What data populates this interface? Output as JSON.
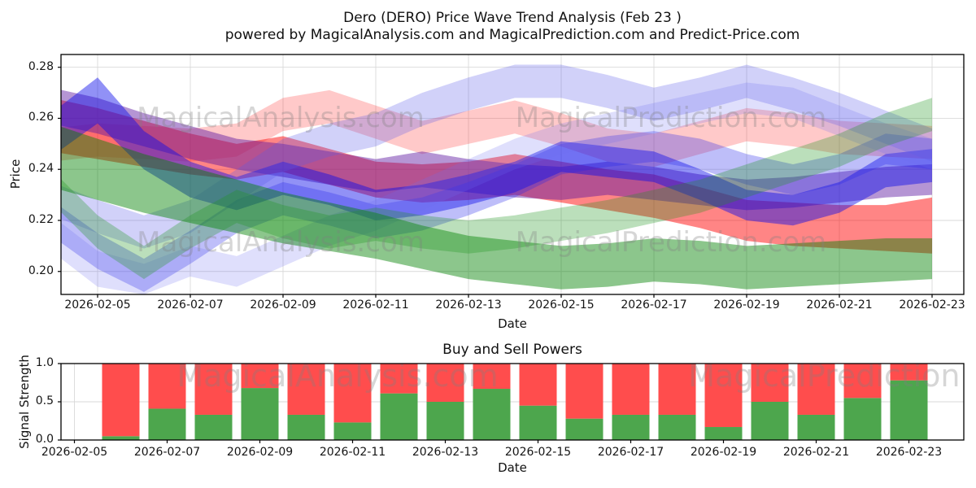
{
  "figure_title_line1": "Dero (DERO) Price Wave Trend Analysis (Feb 23 )",
  "figure_title_line2": "powered by MagicalAnalysis.com and MagicalPrediction.com and Predict-Price.com",
  "watermarks": {
    "analysis": "MagicalAnalysis.com",
    "prediction": "MagicalPrediction.com",
    "color": "rgba(128,128,128,0.32)"
  },
  "style": {
    "grid_color": "#d9d9d9",
    "spine_color": "#000000",
    "background": "#ffffff"
  },
  "chart_data": [
    {
      "type": "area",
      "title": "Dero (DERO) Price Wave Trend Analysis (Feb 23 )",
      "subtitle": "powered by MagicalAnalysis.com and MagicalPrediction.com and Predict-Price.com",
      "xlabel": "Date",
      "ylabel": "Price",
      "ylim": [
        0.191,
        0.285
      ],
      "yticks": [
        0.2,
        0.22,
        0.24,
        0.26,
        0.28
      ],
      "ytick_labels": [
        "0.20",
        "0.22",
        "0.24",
        "0.26",
        "0.28"
      ],
      "xtick_labels": [
        "2026-02-05",
        "2026-02-07",
        "2026-02-09",
        "2026-02-11",
        "2026-02-13",
        "2026-02-15",
        "2026-02-17",
        "2026-02-19",
        "2026-02-21",
        "2026-02-23"
      ],
      "grid": true,
      "legend": "none",
      "x": [
        "2026-02-04",
        "2026-02-05",
        "2026-02-06",
        "2026-02-07",
        "2026-02-08",
        "2026-02-09",
        "2026-02-10",
        "2026-02-11",
        "2026-02-12",
        "2026-02-13",
        "2026-02-14",
        "2026-02-15",
        "2026-02-16",
        "2026-02-17",
        "2026-02-18",
        "2026-02-19",
        "2026-02-20",
        "2026-02-21",
        "2026-02-22",
        "2026-02-23"
      ],
      "series": [
        {
          "name": "red-wave-main",
          "color": "rgba(255,0,0,0.48)",
          "upper": [
            0.268,
            0.264,
            0.259,
            0.254,
            0.25,
            0.253,
            0.248,
            0.243,
            0.242,
            0.243,
            0.246,
            0.243,
            0.24,
            0.238,
            0.233,
            0.228,
            0.227,
            0.226,
            0.226,
            0.229
          ],
          "lower": [
            0.247,
            0.244,
            0.241,
            0.238,
            0.236,
            0.239,
            0.234,
            0.229,
            0.227,
            0.228,
            0.23,
            0.227,
            0.224,
            0.221,
            0.217,
            0.212,
            0.21,
            0.209,
            0.208,
            0.207
          ]
        },
        {
          "name": "red-wave-light",
          "color": "rgba(255,40,40,0.25)",
          "upper": [
            0.256,
            0.258,
            0.257,
            0.256,
            0.258,
            0.268,
            0.271,
            0.265,
            0.259,
            0.263,
            0.267,
            0.262,
            0.256,
            0.254,
            0.259,
            0.264,
            0.262,
            0.259,
            0.258,
            0.257
          ],
          "lower": [
            0.243,
            0.245,
            0.244,
            0.243,
            0.245,
            0.255,
            0.258,
            0.252,
            0.246,
            0.25,
            0.254,
            0.249,
            0.243,
            0.241,
            0.246,
            0.251,
            0.249,
            0.246,
            0.245,
            0.244
          ]
        },
        {
          "name": "purple-wave",
          "color": "rgba(90,20,160,0.45)",
          "upper": [
            0.272,
            0.268,
            0.262,
            0.257,
            0.252,
            0.25,
            0.247,
            0.244,
            0.247,
            0.244,
            0.242,
            0.241,
            0.243,
            0.241,
            0.238,
            0.236,
            0.237,
            0.239,
            0.241,
            0.242
          ],
          "lower": [
            0.258,
            0.254,
            0.249,
            0.244,
            0.24,
            0.237,
            0.234,
            0.231,
            0.233,
            0.231,
            0.229,
            0.228,
            0.23,
            0.228,
            0.226,
            0.224,
            0.225,
            0.227,
            0.229,
            0.23
          ]
        },
        {
          "name": "blue-wave-main",
          "color": "rgba(10,10,235,0.45)",
          "upper": [
            0.262,
            0.276,
            0.255,
            0.243,
            0.237,
            0.243,
            0.238,
            0.232,
            0.234,
            0.238,
            0.243,
            0.251,
            0.249,
            0.247,
            0.24,
            0.232,
            0.23,
            0.235,
            0.246,
            0.248
          ],
          "lower": [
            0.245,
            0.258,
            0.24,
            0.229,
            0.224,
            0.23,
            0.226,
            0.22,
            0.222,
            0.226,
            0.231,
            0.239,
            0.237,
            0.235,
            0.228,
            0.22,
            0.218,
            0.223,
            0.233,
            0.235
          ]
        },
        {
          "name": "blue-wave-mid",
          "color": "rgba(40,40,235,0.30)",
          "upper": [
            0.228,
            0.215,
            0.205,
            0.216,
            0.228,
            0.235,
            0.231,
            0.226,
            0.229,
            0.235,
            0.242,
            0.25,
            0.253,
            0.255,
            0.252,
            0.246,
            0.242,
            0.246,
            0.254,
            0.252
          ],
          "lower": [
            0.214,
            0.201,
            0.192,
            0.203,
            0.215,
            0.222,
            0.218,
            0.213,
            0.216,
            0.222,
            0.229,
            0.238,
            0.241,
            0.243,
            0.24,
            0.234,
            0.23,
            0.234,
            0.242,
            0.24
          ]
        },
        {
          "name": "periwinkle-arc",
          "color": "rgba(90,90,235,0.28)",
          "upper": [
            0.235,
            0.228,
            0.222,
            0.228,
            0.24,
            0.252,
            0.258,
            0.262,
            0.27,
            0.276,
            0.281,
            0.281,
            0.277,
            0.272,
            0.276,
            0.281,
            0.276,
            0.27,
            0.263,
            0.256
          ],
          "lower": [
            0.222,
            0.215,
            0.209,
            0.215,
            0.227,
            0.239,
            0.245,
            0.249,
            0.257,
            0.263,
            0.268,
            0.268,
            0.264,
            0.259,
            0.263,
            0.268,
            0.263,
            0.257,
            0.25,
            0.243
          ]
        },
        {
          "name": "periwinkle-low",
          "color": "rgba(110,110,240,0.22)",
          "upper": [
            0.222,
            0.208,
            0.203,
            0.21,
            0.206,
            0.214,
            0.222,
            0.228,
            0.236,
            0.244,
            0.252,
            0.258,
            0.262,
            0.266,
            0.27,
            0.274,
            0.272,
            0.265,
            0.258,
            0.252
          ],
          "lower": [
            0.208,
            0.194,
            0.191,
            0.198,
            0.194,
            0.202,
            0.21,
            0.216,
            0.224,
            0.232,
            0.24,
            0.246,
            0.25,
            0.254,
            0.258,
            0.262,
            0.26,
            0.253,
            0.246,
            0.24
          ]
        },
        {
          "name": "green-wave-main",
          "color": "rgba(0,128,0,0.45)",
          "upper": [
            0.258,
            0.252,
            0.246,
            0.241,
            0.236,
            0.231,
            0.227,
            0.223,
            0.218,
            0.214,
            0.212,
            0.21,
            0.211,
            0.213,
            0.212,
            0.21,
            0.211,
            0.212,
            0.213,
            0.213
          ],
          "lower": [
            0.233,
            0.228,
            0.223,
            0.219,
            0.215,
            0.211,
            0.208,
            0.205,
            0.201,
            0.197,
            0.195,
            0.193,
            0.194,
            0.196,
            0.195,
            0.193,
            0.194,
            0.195,
            0.196,
            0.197
          ]
        },
        {
          "name": "green-wave-light",
          "color": "rgba(30,150,30,0.30)",
          "upper": [
            0.24,
            0.222,
            0.21,
            0.222,
            0.232,
            0.226,
            0.222,
            0.225,
            0.222,
            0.22,
            0.222,
            0.225,
            0.228,
            0.232,
            0.236,
            0.242,
            0.248,
            0.254,
            0.262,
            0.268
          ],
          "lower": [
            0.227,
            0.209,
            0.197,
            0.209,
            0.219,
            0.213,
            0.209,
            0.212,
            0.209,
            0.207,
            0.209,
            0.212,
            0.215,
            0.219,
            0.223,
            0.229,
            0.235,
            0.241,
            0.249,
            0.255
          ]
        }
      ]
    },
    {
      "type": "bar",
      "stacked": true,
      "title": "Buy and Sell Powers",
      "xlabel": "Date",
      "ylabel": "Signal Strength",
      "ylim": [
        0,
        1.0
      ],
      "yticks": [
        0.0,
        0.5,
        1.0
      ],
      "ytick_labels": [
        "0.0",
        "0.5",
        "1.0"
      ],
      "xtick_labels": [
        "2026-02-05",
        "2026-02-07",
        "2026-02-09",
        "2026-02-11",
        "2026-02-13",
        "2026-02-15",
        "2026-02-17",
        "2026-02-19",
        "2026-02-21",
        "2026-02-23"
      ],
      "categories": [
        "2026-02-06",
        "2026-02-07",
        "2026-02-08",
        "2026-02-09",
        "2026-02-10",
        "2026-02-11",
        "2026-02-12",
        "2026-02-13",
        "2026-02-14",
        "2026-02-15",
        "2026-02-16",
        "2026-02-17",
        "2026-02-18",
        "2026-02-19",
        "2026-02-20",
        "2026-02-21",
        "2026-02-22",
        "2026-02-23"
      ],
      "series": [
        {
          "name": "Buy",
          "color": "#4da64d",
          "values": [
            0.05,
            0.41,
            0.33,
            0.68,
            0.33,
            0.23,
            0.61,
            0.5,
            0.67,
            0.45,
            0.28,
            0.33,
            0.33,
            0.17,
            0.5,
            0.33,
            0.55,
            0.78
          ]
        },
        {
          "name": "Sell",
          "color": "#ff4d4d",
          "values": [
            0.95,
            0.59,
            0.67,
            0.32,
            0.67,
            0.77,
            0.39,
            0.5,
            0.33,
            0.55,
            0.72,
            0.67,
            0.67,
            0.83,
            0.5,
            0.67,
            0.45,
            0.22
          ]
        }
      ]
    }
  ]
}
